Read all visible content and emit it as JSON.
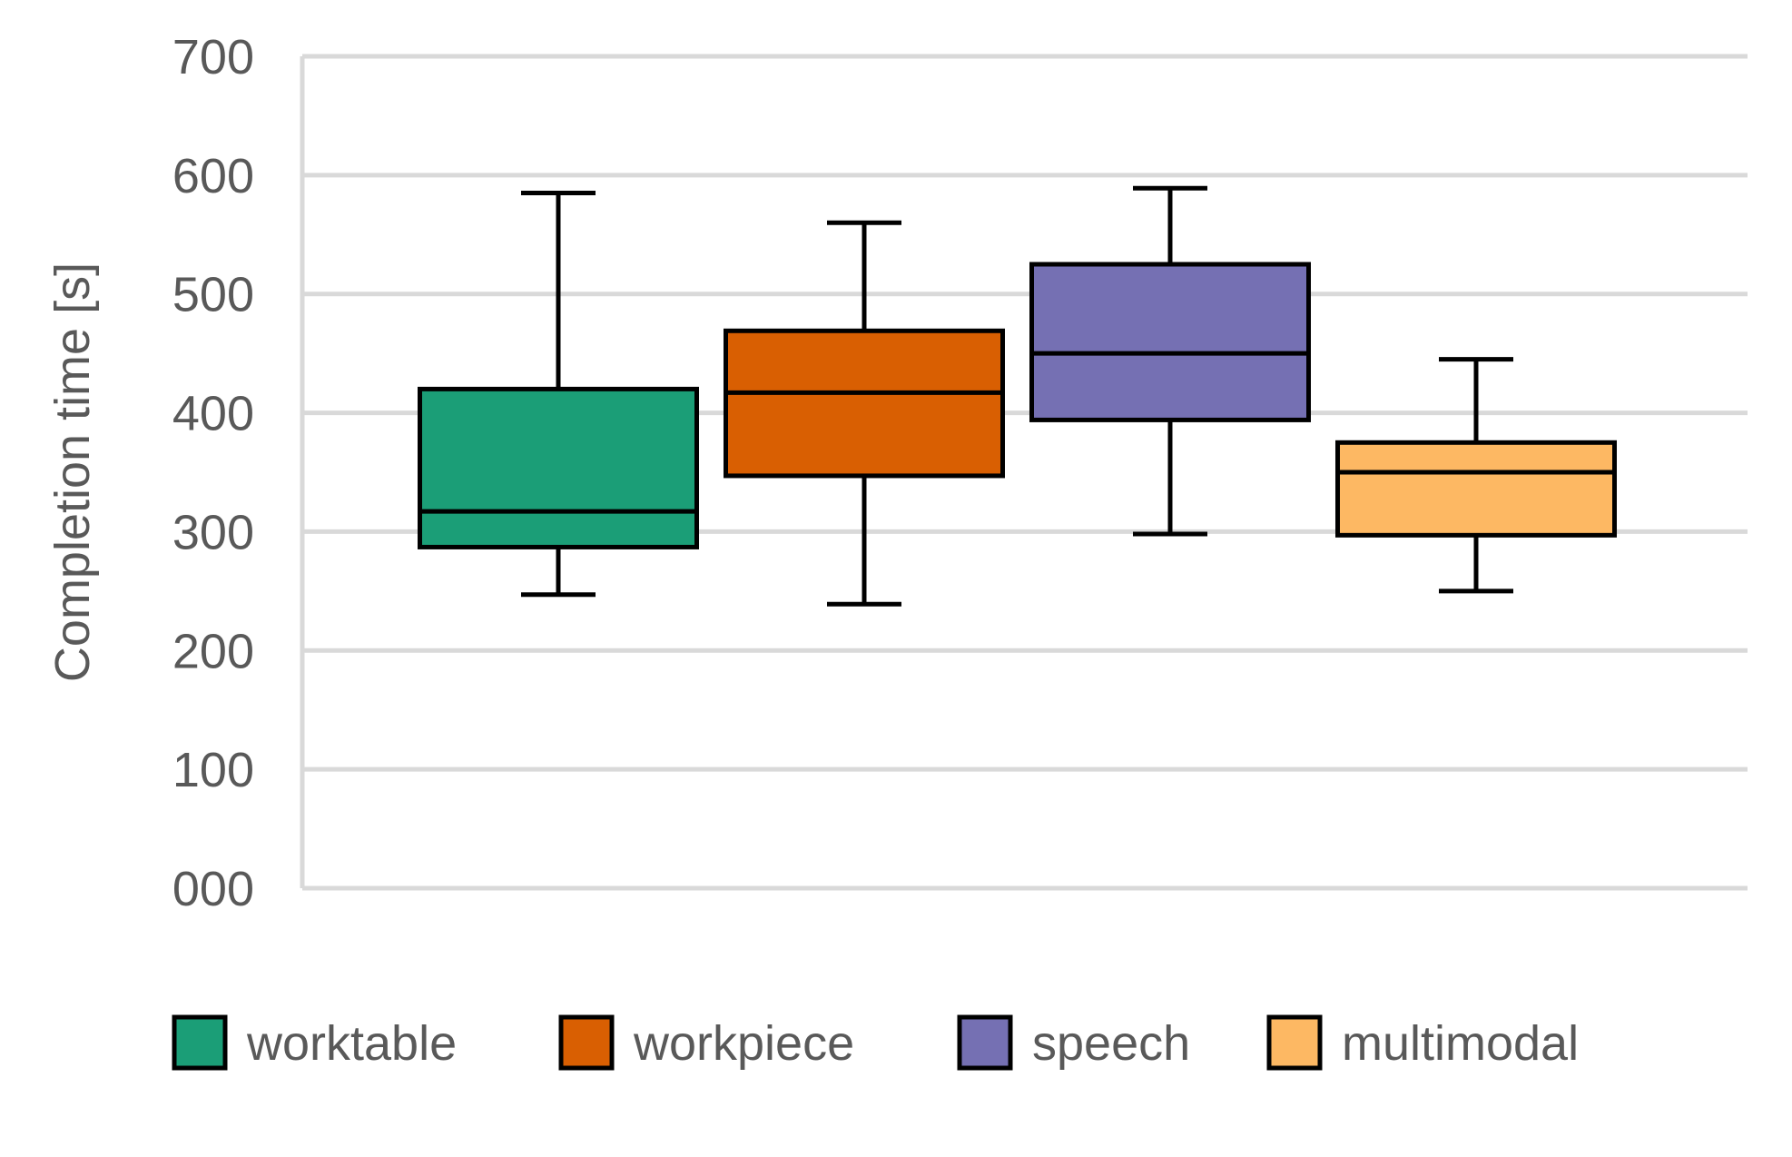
{
  "chart_data": {
    "type": "box",
    "ylabel": "Completion time [s]",
    "ylim": [
      0,
      700
    ],
    "yticks": [
      0,
      100,
      200,
      300,
      400,
      500,
      600,
      700
    ],
    "ytick_labels": [
      "000",
      "100",
      "200",
      "300",
      "400",
      "500",
      "600",
      "700"
    ],
    "grid": true,
    "legend_position": "bottom",
    "series": [
      {
        "name": "worktable",
        "color": "#1B9E77",
        "whisker_low": 247,
        "q1": 287,
        "median": 317,
        "q3": 420,
        "whisker_high": 585
      },
      {
        "name": "workpiece",
        "color": "#D95F02",
        "whisker_low": 239,
        "q1": 347,
        "median": 417,
        "q3": 469,
        "whisker_high": 560
      },
      {
        "name": "speech",
        "color": "#7570B3",
        "whisker_low": 298,
        "q1": 394,
        "median": 450,
        "q3": 525,
        "whisker_high": 589
      },
      {
        "name": "multimodal",
        "color": "#FDB863",
        "whisker_low": 250,
        "q1": 297,
        "median": 350,
        "q3": 375,
        "whisker_high": 445
      }
    ]
  }
}
